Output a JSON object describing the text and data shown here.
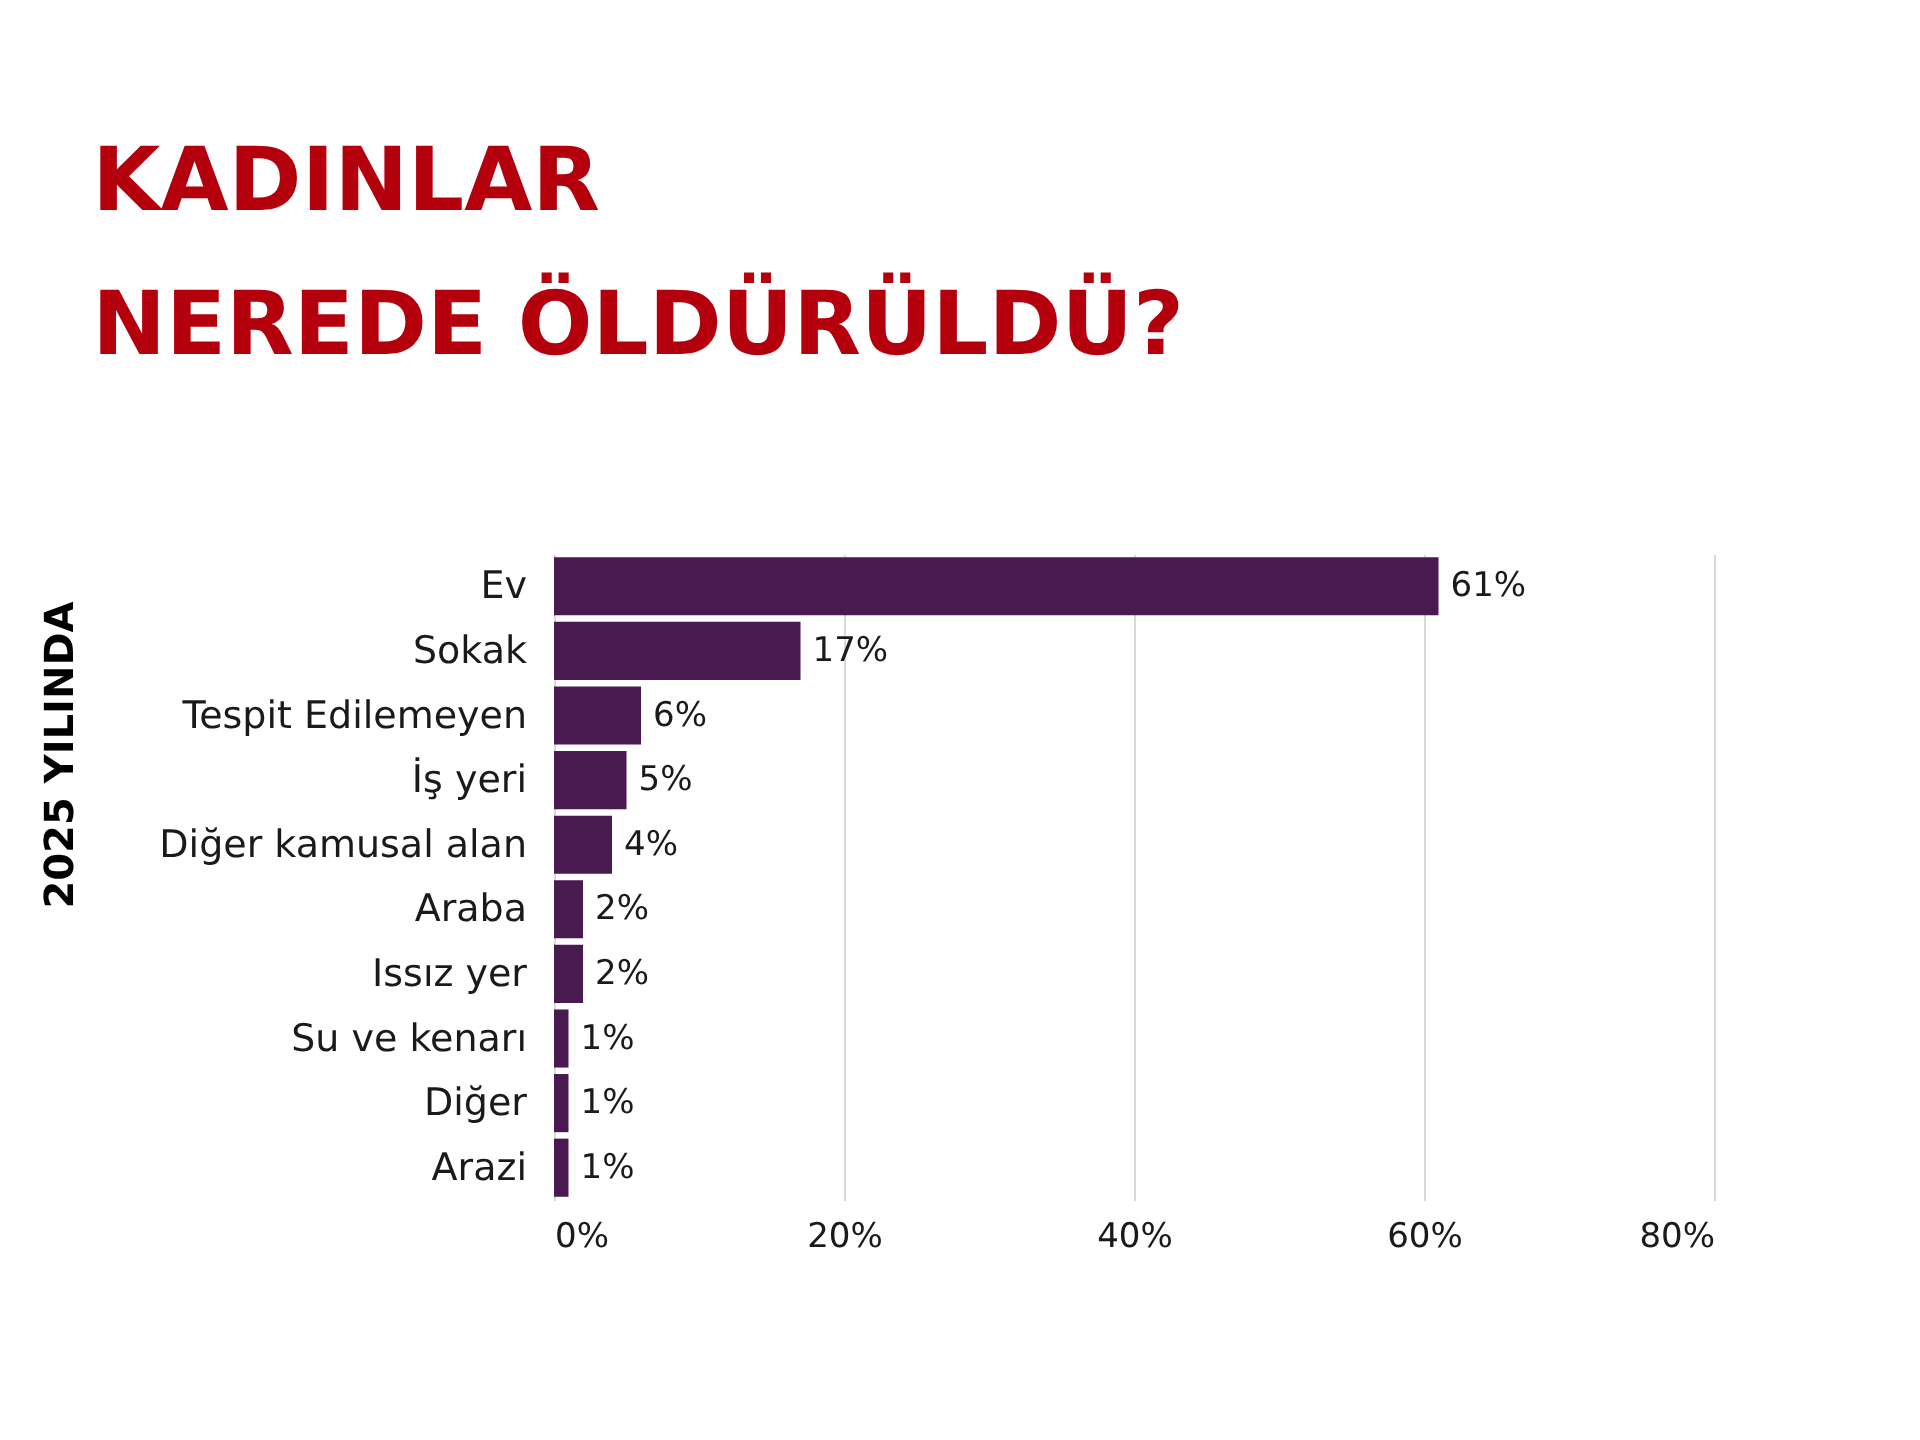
{
  "chart_data": {
    "type": "bar",
    "orientation": "horizontal",
    "title": "KADINLAR\nNEREDE ÖLDÜRÜLDÜ?",
    "ylabel": "2025 YILINDA",
    "categories": [
      "Ev",
      "Sokak",
      "Tespit Edilemeyen",
      "İş yeri",
      "Diğer kamusal alan",
      "Araba",
      "Issız yer",
      "Su ve kenarı",
      "Diğer",
      "Arazi"
    ],
    "values": [
      61,
      17,
      6,
      5,
      4,
      2,
      2,
      1,
      1,
      1
    ],
    "value_labels": [
      "61%",
      "17%",
      "6%",
      "5%",
      "4%",
      "2%",
      "2%",
      "1%",
      "1%",
      "1%"
    ],
    "color": "#481a4f",
    "xlim": [
      0,
      80
    ],
    "xticks": [
      {
        "value": 0,
        "label": "0%"
      },
      {
        "value": 20,
        "label": "20%"
      },
      {
        "value": 40,
        "label": "40%"
      },
      {
        "value": 60,
        "label": "60%"
      },
      {
        "value": 80,
        "label": "80%"
      }
    ],
    "grid": "x"
  }
}
